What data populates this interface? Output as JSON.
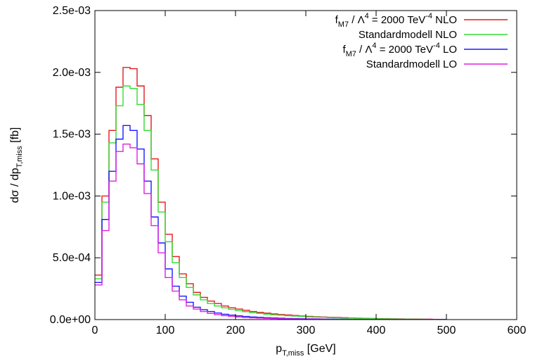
{
  "chart_data": {
    "type": "line",
    "step": true,
    "xlabel": {
      "main": "p",
      "sub": "T,miss",
      "tail": " [GeV]"
    },
    "ylabel": {
      "main": "dσ / dp",
      "sub": "T,miss",
      "tail": " [fb]"
    },
    "xlim": [
      0,
      600
    ],
    "ylim": [
      0,
      0.0025
    ],
    "xticks": [
      0,
      100,
      200,
      300,
      400,
      500,
      600
    ],
    "xtick_labels": [
      "0",
      "100",
      "200",
      "300",
      "400",
      "500",
      "600"
    ],
    "yticks": [
      0,
      0.0005,
      0.001,
      0.0015,
      0.002,
      0.0025
    ],
    "ytick_labels": [
      "0.0e+00",
      "5.0e-04",
      "1.0e-03",
      "1.5e-03",
      "2.0e-03",
      "2.5e-03"
    ],
    "grid": false,
    "legend_position": "top-right",
    "bin_width": 10,
    "bin_edges_start": 0,
    "series": [
      {
        "name_parts": {
          "a": "f",
          "a_sub": "M7",
          "b": " / Λ",
          "b_sup": "4",
          "c": " = 2000 TeV",
          "c_sup": "-4",
          "d": " NLO"
        },
        "color": "#e41a1c",
        "values": [
          0.00036,
          0.001,
          0.00153,
          0.00188,
          0.00204,
          0.00203,
          0.00189,
          0.00165,
          0.0013,
          0.00095,
          0.00069,
          0.00051,
          0.00037,
          0.00029,
          0.00022,
          0.00018,
          0.00015,
          0.00013,
          0.00011,
          9.5e-05,
          8.5e-05,
          7.5e-05,
          6.5e-05,
          5.8e-05,
          5.2e-05,
          4.6e-05,
          4.1e-05,
          3.7e-05,
          3.3e-05,
          2.9e-05,
          2.6e-05,
          2.3e-05,
          2.1e-05,
          1.9e-05,
          1.7e-05,
          1.5e-05,
          1.3e-05,
          1.2e-05,
          1e-05,
          9e-06,
          8e-06,
          7e-06,
          6e-06,
          5e-06,
          4e-06,
          4e-06,
          3e-06,
          3e-06,
          2e-06,
          2e-06
        ]
      },
      {
        "name": "Standardmodell NLO",
        "color": "#33dd33",
        "values": [
          0.00033,
          0.00095,
          0.00143,
          0.00173,
          0.00189,
          0.00187,
          0.00174,
          0.00153,
          0.00121,
          0.00087,
          0.00063,
          0.00046,
          0.00034,
          0.00026,
          0.0002,
          0.00016,
          0.00013,
          0.00011,
          9.5e-05,
          8.2e-05,
          7.2e-05,
          6.4e-05,
          5.6e-05,
          5e-05,
          4.4e-05,
          3.9e-05,
          3.5e-05,
          3.1e-05,
          2.8e-05,
          2.5e-05,
          2.2e-05,
          2e-05,
          1.8e-05,
          1.6e-05,
          1.4e-05,
          1.2e-05,
          1.1e-05,
          1e-05,
          9e-06,
          8e-06,
          7e-06,
          6e-06,
          5e-06,
          4e-06,
          4e-06,
          3e-06,
          3e-06,
          2e-06,
          2e-06,
          1e-06
        ]
      },
      {
        "name_parts": {
          "a": "f",
          "a_sub": "M7",
          "b": " / Λ",
          "b_sup": "4",
          "c": " = 2000 TeV",
          "c_sup": "-4",
          "d": " LO"
        },
        "color": "#1a1aff",
        "values": [
          0.0003,
          0.00081,
          0.0012,
          0.00146,
          0.00157,
          0.00153,
          0.00138,
          0.00112,
          0.00083,
          0.00062,
          0.00041,
          0.00027,
          0.00019,
          0.00014,
          0.0001,
          8e-05,
          6.5e-05,
          5.3e-05,
          4.3e-05,
          3.6e-05,
          3e-05,
          2.5e-05,
          2.1e-05,
          1.8e-05,
          1.5e-05,
          1.3e-05,
          1.1e-05,
          9e-06,
          8e-06,
          7e-06,
          6e-06,
          5e-06,
          4e-06,
          4e-06,
          3e-06,
          3e-06,
          2e-06,
          2e-06,
          2e-06,
          1e-06,
          1e-06,
          1e-06,
          1e-06,
          1e-06,
          1e-06,
          1e-06,
          1e-06,
          1e-06,
          1e-06,
          1e-06
        ]
      },
      {
        "name": "Standardmodell LO",
        "color": "#e020e0",
        "values": [
          0.00028,
          0.00072,
          0.00112,
          0.00136,
          0.00142,
          0.00139,
          0.00126,
          0.00102,
          0.00076,
          0.00054,
          0.00034,
          0.00023,
          0.00016,
          0.00011,
          8.5e-05,
          6.5e-05,
          5e-05,
          4e-05,
          3.2e-05,
          2.6e-05,
          2.1e-05,
          1.7e-05,
          1.4e-05,
          1.2e-05,
          1e-05,
          8e-06,
          7e-06,
          6e-06,
          5e-06,
          4e-06,
          4e-06,
          3e-06,
          3e-06,
          2e-06,
          2e-06,
          2e-06,
          1e-06,
          1e-06,
          1e-06,
          1e-06,
          1e-06,
          1e-06,
          1e-06,
          1e-06,
          1e-06,
          1e-06,
          1e-06,
          1e-06,
          1e-06,
          1e-06
        ]
      }
    ]
  }
}
